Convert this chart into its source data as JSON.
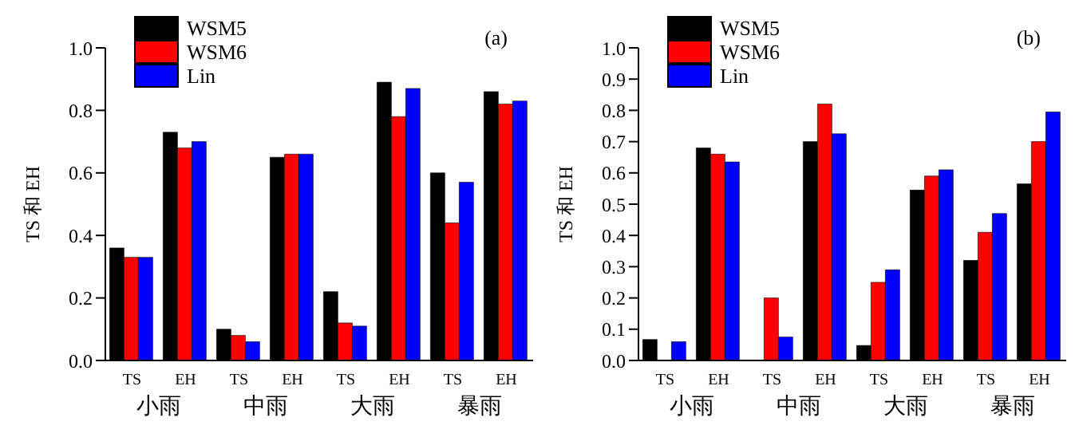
{
  "chart_data": [
    {
      "type": "bar",
      "ylabel": "TS 和 EH",
      "categories": [
        "TS",
        "EH",
        "TS",
        "EH",
        "TS",
        "EH",
        "TS",
        "EH"
      ],
      "series": [
        {
          "name": "WSM5",
          "color": "#000000",
          "values": [
            0.36,
            0.73,
            0.1,
            0.65,
            0.22,
            0.89,
            0.6,
            0.86
          ]
        },
        {
          "name": "WSM6",
          "color": "#ff0000",
          "values": [
            0.33,
            0.68,
            0.08,
            0.66,
            0.12,
            0.78,
            0.44,
            0.82
          ]
        },
        {
          "name": "Lin",
          "color": "#0000ff",
          "values": [
            0.33,
            0.7,
            0.06,
            0.66,
            0.11,
            0.87,
            0.57,
            0.83
          ]
        }
      ],
      "ylim": [
        0,
        1
      ],
      "yticks": [
        {
          "value": 0,
          "label": "0.0"
        },
        {
          "value": 0.2,
          "label": "0.2"
        },
        {
          "value": 0.4,
          "label": "0.4"
        },
        {
          "value": 0.6,
          "label": "0.6"
        },
        {
          "value": 0.8,
          "label": "0.8"
        },
        {
          "value": 1,
          "label": "1.0"
        }
      ],
      "legend": "top left",
      "grid": false,
      "annotations": [
        "(a)",
        "小雨",
        "中雨",
        "大雨",
        "暴雨"
      ]
    },
    {
      "type": "bar",
      "ylabel": "TS 和 EH",
      "categories": [
        "TS",
        "EH",
        "TS",
        "EH",
        "TS",
        "EH",
        "TS",
        "EH"
      ],
      "series": [
        {
          "name": "WSM5",
          "color": "#000000",
          "values": [
            0.067,
            0.68,
            0,
            0.7,
            0.048,
            0.545,
            0.32,
            0.565
          ]
        },
        {
          "name": "WSM6",
          "color": "#ff0000",
          "values": [
            0,
            0.66,
            0.2,
            0.82,
            0.25,
            0.59,
            0.41,
            0.7
          ]
        },
        {
          "name": "Lin",
          "color": "#0000ff",
          "values": [
            0.06,
            0.635,
            0.075,
            0.725,
            0.29,
            0.61,
            0.47,
            0.795
          ]
        }
      ],
      "ylim": [
        0,
        1
      ],
      "yticks": [
        {
          "value": 0,
          "label": "0.0"
        },
        {
          "value": 0.1,
          "label": "0.1"
        },
        {
          "value": 0.2,
          "label": "0.2"
        },
        {
          "value": 0.3,
          "label": "0.3"
        },
        {
          "value": 0.4,
          "label": "0.4"
        },
        {
          "value": 0.5,
          "label": "0.5"
        },
        {
          "value": 0.6,
          "label": "0.6"
        },
        {
          "value": 0.7,
          "label": "0.7"
        },
        {
          "value": 0.8,
          "label": "0.8"
        },
        {
          "value": 0.9,
          "label": "0.9"
        },
        {
          "value": 1,
          "label": "1.0"
        }
      ],
      "legend": "top left",
      "grid": false,
      "annotations": [
        "(b)",
        "小雨",
        "中雨",
        "大雨",
        "暴雨"
      ]
    }
  ]
}
